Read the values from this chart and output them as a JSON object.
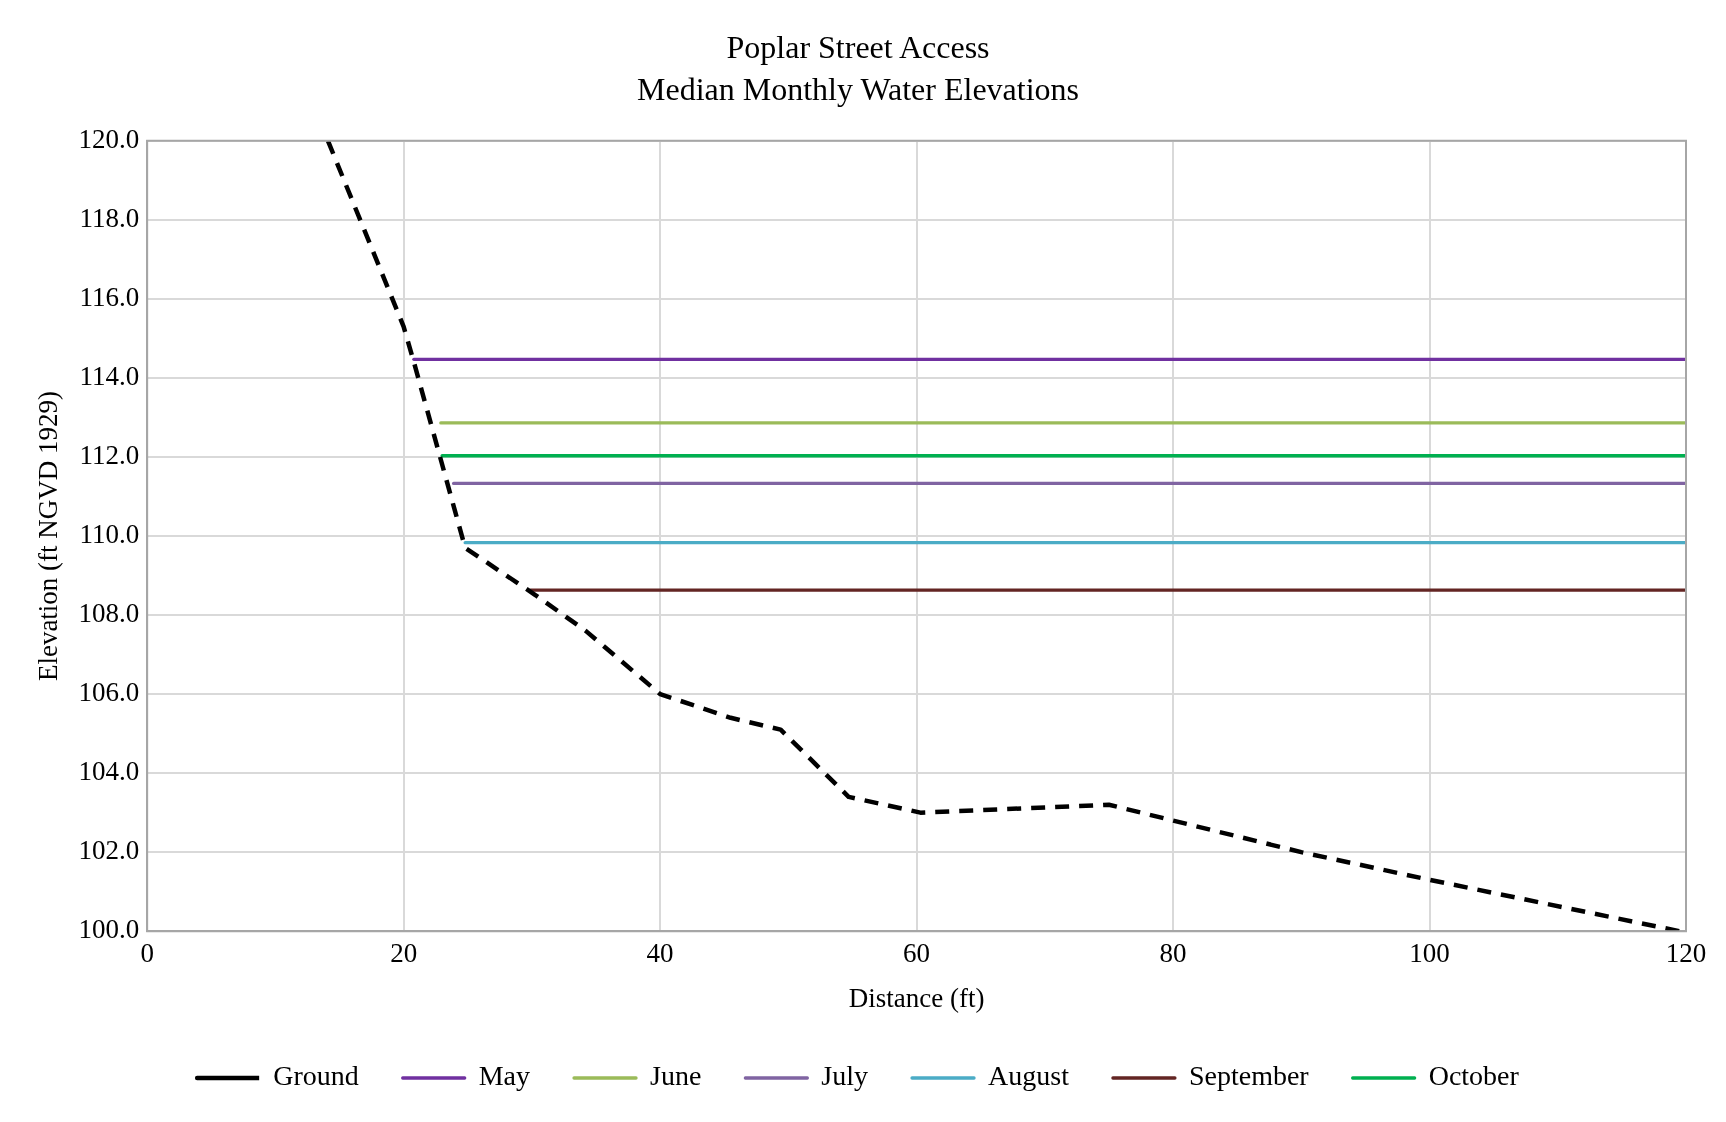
{
  "chart_data": {
    "type": "line",
    "title": "Poplar Street Access",
    "subtitle": "Median Monthly Water Elevations",
    "xlabel": "Distance (ft)",
    "ylabel": "Elevation (ft NGVD 1929)",
    "xlim": [
      0,
      120
    ],
    "xticks": [
      0,
      20,
      40,
      60,
      80,
      100,
      120
    ],
    "ylim": [
      100,
      120
    ],
    "yticks": [
      {
        "value": 100,
        "label": "100.0"
      },
      {
        "value": 102,
        "label": "102.0"
      },
      {
        "value": 104,
        "label": "104.0"
      },
      {
        "value": 106,
        "label": "106.0"
      },
      {
        "value": 108,
        "label": "108.0"
      },
      {
        "value": 110,
        "label": "110.0"
      },
      {
        "value": 112,
        "label": "112.0"
      },
      {
        "value": 114,
        "label": "114.0"
      },
      {
        "value": 116,
        "label": "116.0"
      },
      {
        "value": 118,
        "label": "118.0"
      },
      {
        "value": 120,
        "label": "120.0"
      }
    ],
    "grid": true,
    "legend": "bottom",
    "marker": "none",
    "series": [
      {
        "name": "Ground",
        "color": "#000000",
        "line_style": "dashed",
        "x": [
          14.1,
          20,
          20.8,
          24.8,
          30.3,
          34.2,
          40,
          45.5,
          49.4,
          54.7,
          60.3,
          75,
          80,
          90,
          100,
          119.5
        ],
        "values": [
          120,
          115.3,
          114.4,
          109.7,
          108.5,
          107.6,
          106,
          105.4,
          105.1,
          103.4,
          103,
          103.2,
          102.8,
          102,
          101.3,
          100
        ]
      },
      {
        "name": "May",
        "color": "#7030a0",
        "line_style": "solid",
        "x": [
          20.8,
          120
        ],
        "values": [
          114.47,
          114.47
        ]
      },
      {
        "name": "June",
        "color": "#9bbb59",
        "line_style": "solid",
        "x": [
          22.9,
          120
        ],
        "values": [
          112.86,
          112.86
        ]
      },
      {
        "name": "July",
        "color": "#8064a2",
        "line_style": "solid",
        "x": [
          23.9,
          120
        ],
        "values": [
          111.33,
          111.33
        ]
      },
      {
        "name": "August",
        "color": "#4bacc6",
        "line_style": "solid",
        "x": [
          24.8,
          120
        ],
        "values": [
          109.83,
          109.83
        ]
      },
      {
        "name": "September",
        "color": "#632523",
        "line_style": "solid",
        "x": [
          29.9,
          120
        ],
        "values": [
          108.63,
          108.63
        ]
      },
      {
        "name": "October",
        "color": "#00b050",
        "line_style": "solid",
        "x": [
          23,
          120
        ],
        "values": [
          112.03,
          112.03
        ]
      }
    ]
  }
}
